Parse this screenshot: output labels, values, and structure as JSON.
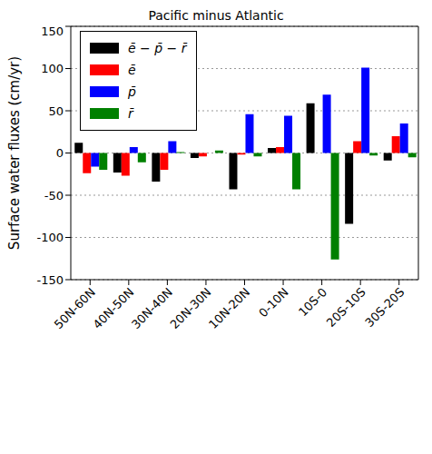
{
  "chart_data": {
    "type": "bar",
    "title": "Pacific minus Atlantic",
    "y_label": "Surface water fluxes  (cm/yr)",
    "categories": [
      "50N-60N",
      "40N-50N",
      "30N-40N",
      "20N-30N",
      "10N-20N",
      "0-10N",
      "10S-0",
      "20S-10S",
      "30S-20S"
    ],
    "series": [
      {
        "name": "ē − p̄ − r̄",
        "color": "#000000",
        "values": [
          12,
          -23,
          -34,
          -6,
          -43,
          6,
          59,
          -84,
          -9
        ]
      },
      {
        "name": "ē",
        "color": "#ff0000",
        "values": [
          -24,
          -27,
          -20,
          -4,
          -2,
          7,
          0,
          14,
          20
        ]
      },
      {
        "name": "p̄",
        "color": "#0000ff",
        "values": [
          -16,
          7,
          14,
          0,
          46,
          44,
          69,
          101,
          35
        ]
      },
      {
        "name": "r̄",
        "color": "#008000",
        "values": [
          -20,
          -11,
          1,
          3,
          -4,
          -43,
          -126,
          -3,
          -5
        ]
      }
    ],
    "ylim": [
      -150,
      150
    ],
    "yticks": [
      -150,
      -100,
      -50,
      0,
      50,
      100,
      150
    ],
    "grid": true,
    "legend": "upper left"
  }
}
